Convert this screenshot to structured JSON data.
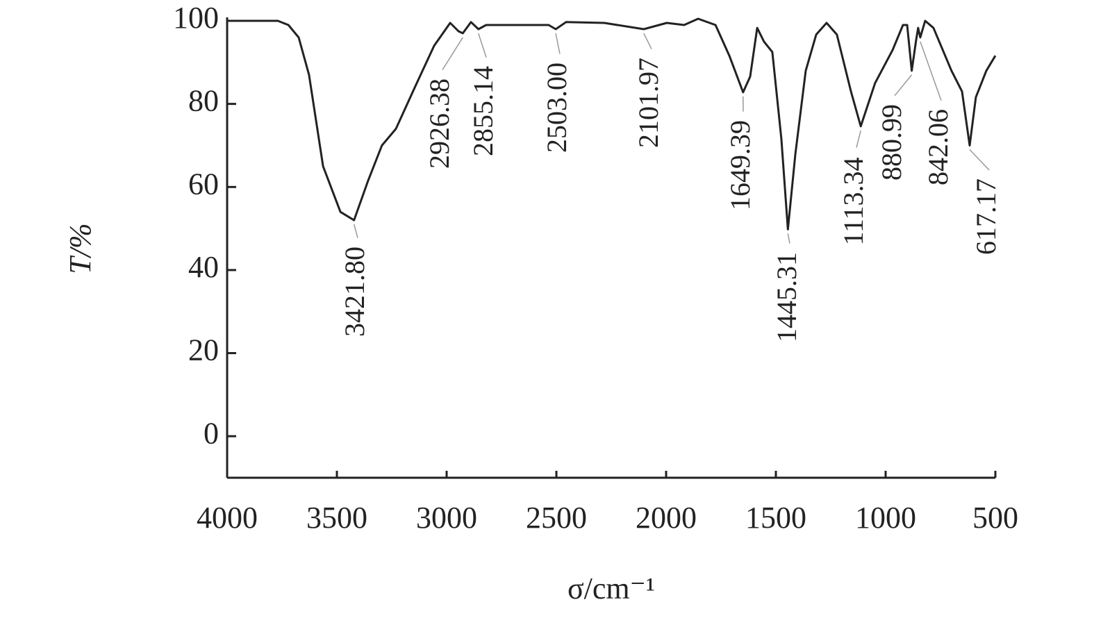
{
  "chart_data": {
    "type": "line",
    "xlabel": "σ/cm⁻¹",
    "ylabel": "T/%",
    "xlim": [
      4000,
      500
    ],
    "ylim": [
      -10,
      100
    ],
    "xticks": [
      4000,
      3500,
      3000,
      2500,
      2000,
      1500,
      1000,
      500
    ],
    "yticks": [
      0,
      20,
      40,
      60,
      80,
      100
    ],
    "color": "#222222",
    "x": [
      3990,
      3769,
      3721,
      3674,
      3627,
      3563,
      3484,
      3421.8,
      3358,
      3295,
      3231,
      3136,
      3057,
      2984,
      2946,
      2926.38,
      2889,
      2855.14,
      2820,
      2693,
      2535,
      2503,
      2456,
      2282,
      2101.97,
      1997,
      1918,
      1854,
      1775,
      1712,
      1649.39,
      1617,
      1585,
      1554,
      1516,
      1475,
      1445.31,
      1411,
      1364,
      1316,
      1269,
      1222,
      1158,
      1113.34,
      1048,
      968,
      921,
      902,
      880.99,
      862,
      852,
      842.06,
      820,
      782,
      700,
      652,
      617.17,
      589,
      541,
      500
    ],
    "values": [
      100,
      100,
      99,
      96,
      87,
      65,
      54,
      52,
      61.5,
      70,
      74,
      85,
      94,
      99.5,
      97.5,
      97,
      99.7,
      98,
      99,
      99,
      99,
      98,
      99.7,
      99.5,
      98,
      99.5,
      99,
      100.5,
      99,
      91.6,
      82.8,
      86.6,
      98.3,
      95,
      92.5,
      71.6,
      49.8,
      68,
      88,
      96.7,
      99.5,
      96.7,
      83,
      74.6,
      85,
      93,
      99,
      99,
      88,
      95,
      98.3,
      96,
      100,
      98.3,
      88,
      83,
      70,
      81.6,
      88,
      91.6
    ],
    "annotations": [
      {
        "value": 3421.8,
        "label": "3421.80"
      },
      {
        "value": 2926.38,
        "label": "2926.38"
      },
      {
        "value": 2855.14,
        "label": "2855.14"
      },
      {
        "value": 2503,
        "label": "2503.00"
      },
      {
        "value": 2101.97,
        "label": "2101.97"
      },
      {
        "value": 1649.39,
        "label": "1649.39"
      },
      {
        "value": 1445.31,
        "label": "1445.31"
      },
      {
        "value": 1113.34,
        "label": "1113.34"
      },
      {
        "value": 880.99,
        "label": "880.99"
      },
      {
        "value": 842.06,
        "label": "842.06"
      },
      {
        "value": 617.17,
        "label": "617.17"
      }
    ]
  }
}
